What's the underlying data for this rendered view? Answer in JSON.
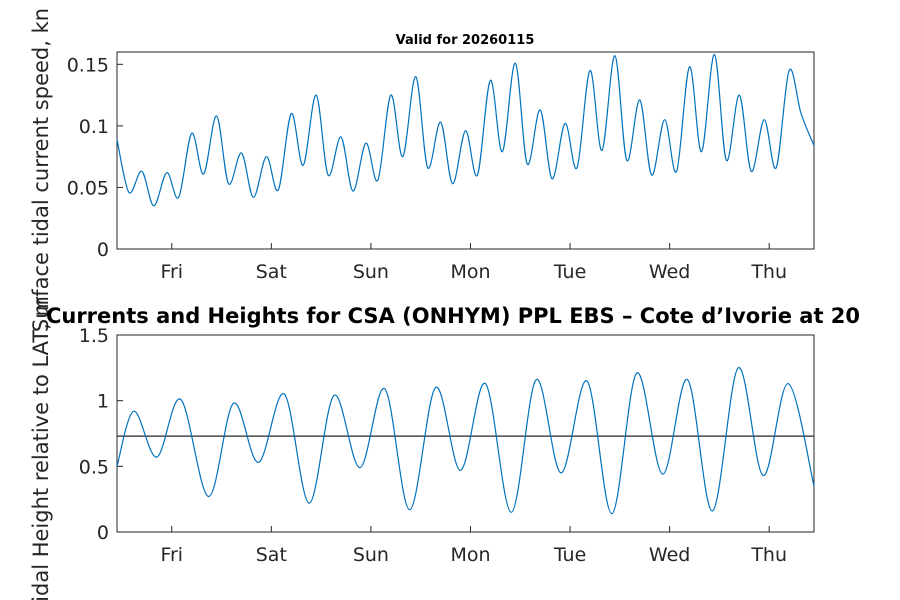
{
  "chart_data": [
    {
      "type": "line",
      "title": "Valid for 20260115",
      "xlabel": "",
      "ylabel": "Surface tidal current speed, kn",
      "ylim": [
        0,
        0.16
      ],
      "yticks": [
        0,
        0.05,
        0.1,
        0.15
      ],
      "ytick_labels": [
        "0",
        "0.05",
        "0.1",
        "0.15"
      ],
      "xlim": [
        0,
        7
      ],
      "xticks": [
        0.55,
        1.55,
        2.55,
        3.55,
        4.55,
        5.55,
        6.55
      ],
      "xtick_labels": [
        "Fri",
        "Sat",
        "Sun",
        "Mon",
        "Tue",
        "Wed",
        "Thu"
      ],
      "series": [
        {
          "name": "current speed",
          "color": "#0072BD",
          "x": [
            0,
            0.12,
            0.25,
            0.37,
            0.5,
            0.62,
            0.75,
            0.87,
            1.0,
            1.12,
            1.25,
            1.37,
            1.5,
            1.62,
            1.75,
            1.87,
            2.0,
            2.12,
            2.25,
            2.37,
            2.5,
            2.62,
            2.75,
            2.87,
            3.0,
            3.12,
            3.25,
            3.37,
            3.5,
            3.62,
            3.75,
            3.87,
            4.0,
            4.12,
            4.25,
            4.37,
            4.5,
            4.62,
            4.75,
            4.87,
            5.0,
            5.12,
            5.25,
            5.37,
            5.5,
            5.62,
            5.75,
            5.87,
            6.0,
            6.12,
            6.25,
            6.37,
            6.5,
            6.62,
            6.75,
            6.87,
            7.0
          ],
          "values": [
            0.089,
            0.046,
            0.063,
            0.035,
            0.062,
            0.042,
            0.094,
            0.061,
            0.108,
            0.053,
            0.078,
            0.042,
            0.075,
            0.048,
            0.11,
            0.068,
            0.125,
            0.06,
            0.091,
            0.047,
            0.086,
            0.056,
            0.125,
            0.075,
            0.14,
            0.066,
            0.103,
            0.053,
            0.096,
            0.06,
            0.137,
            0.079,
            0.151,
            0.069,
            0.113,
            0.057,
            0.102,
            0.066,
            0.145,
            0.08,
            0.157,
            0.072,
            0.121,
            0.06,
            0.105,
            0.063,
            0.148,
            0.079,
            0.158,
            0.072,
            0.125,
            0.063,
            0.105,
            0.066,
            0.145,
            0.11,
            0.084
          ]
        }
      ]
    },
    {
      "type": "line",
      "title": "Currents and Heights for CSA (ONHYM) PPL EBS  – Cote d’Ivorie at 20",
      "xlabel": "",
      "ylabel": "Tidal Height relative to LAT, m",
      "ylim": [
        0,
        1.5
      ],
      "yticks": [
        0,
        0.5,
        1,
        1.5
      ],
      "ytick_labels": [
        "0",
        "0.5",
        "1",
        "1.5"
      ],
      "xlim": [
        0,
        7
      ],
      "xticks": [
        0.55,
        1.55,
        2.55,
        3.55,
        4.55,
        5.55,
        6.55
      ],
      "xtick_labels": [
        "Fri",
        "Sat",
        "Sun",
        "Mon",
        "Tue",
        "Wed",
        "Thu"
      ],
      "reference_line": {
        "y": 0.73,
        "color": "#262626"
      },
      "series": [
        {
          "name": "tidal height",
          "color": "#0072BD",
          "x": [
            0,
            0.17,
            0.4,
            0.64,
            0.92,
            1.17,
            1.42,
            1.68,
            1.93,
            2.18,
            2.44,
            2.69,
            2.94,
            3.2,
            3.45,
            3.7,
            3.96,
            4.21,
            4.46,
            4.72,
            4.97,
            5.22,
            5.48,
            5.73,
            5.98,
            6.24,
            6.49,
            6.74,
            7.0
          ],
          "values": [
            0.5,
            0.92,
            0.57,
            1.01,
            0.27,
            0.98,
            0.53,
            1.05,
            0.22,
            1.04,
            0.49,
            1.09,
            0.17,
            1.1,
            0.47,
            1.13,
            0.15,
            1.16,
            0.45,
            1.15,
            0.14,
            1.21,
            0.44,
            1.16,
            0.16,
            1.25,
            0.43,
            1.13,
            0.35
          ]
        }
      ]
    }
  ]
}
